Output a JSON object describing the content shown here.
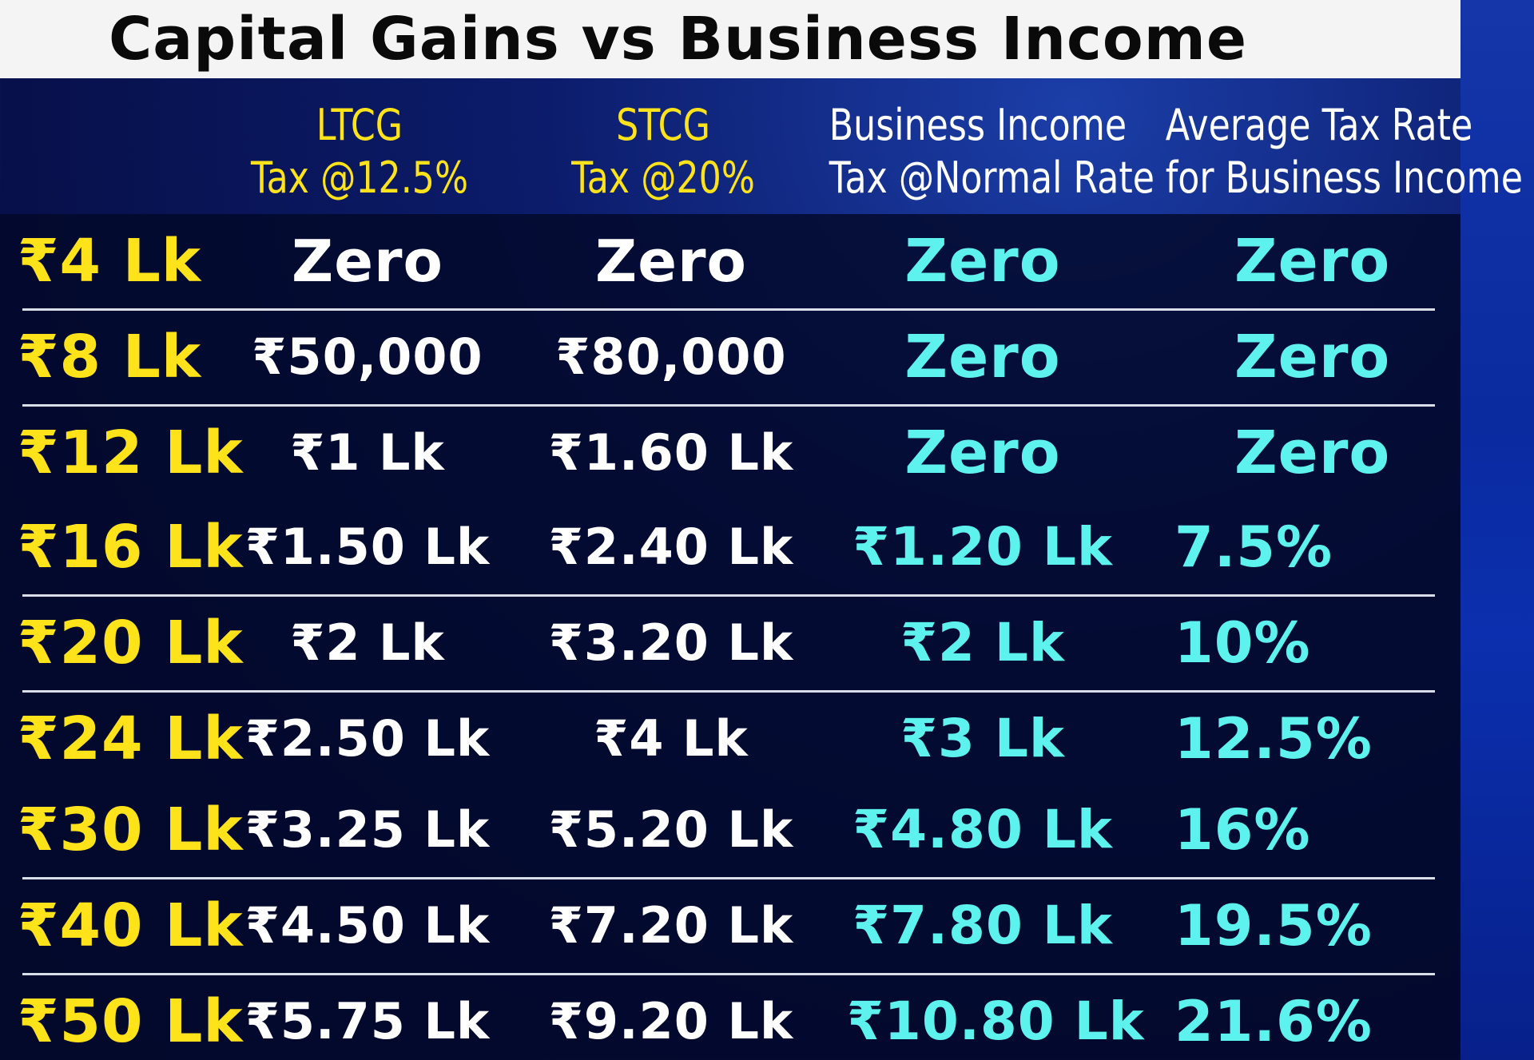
{
  "title": "Capital Gains vs Business Income",
  "columns": {
    "ltcg": [
      "LTCG",
      "Tax @12.5%"
    ],
    "stcg": [
      "STCG",
      "Tax @20%"
    ],
    "business_income": [
      "Business Income",
      "Tax @Normal Rate"
    ],
    "average_rate": [
      "Average Tax Rate",
      "for Business Income"
    ]
  },
  "rows": [
    {
      "income": "₹4 Lk",
      "ltcg": "Zero",
      "stcg": "Zero",
      "business": "Zero",
      "avg": "Zero"
    },
    {
      "income": "₹8 Lk",
      "ltcg": "₹50,000",
      "stcg": "₹80,000",
      "business": "Zero",
      "avg": "Zero"
    },
    {
      "income": "₹12 Lk",
      "ltcg": "₹1 Lk",
      "stcg": "₹1.60 Lk",
      "business": "Zero",
      "avg": "Zero"
    },
    {
      "income": "₹16 Lk",
      "ltcg": "₹1.50 Lk",
      "stcg": "₹2.40 Lk",
      "business": "₹1.20 Lk",
      "avg": "7.5%"
    },
    {
      "income": "₹20 Lk",
      "ltcg": "₹2 Lk",
      "stcg": "₹3.20 Lk",
      "business": "₹2 Lk",
      "avg": "10%"
    },
    {
      "income": "₹24 Lk",
      "ltcg": "₹2.50 Lk",
      "stcg": "₹4 Lk",
      "business": "₹3 Lk",
      "avg": "12.5%"
    },
    {
      "income": "₹30 Lk",
      "ltcg": "₹3.25 Lk",
      "stcg": "₹5.20 Lk",
      "business": "₹4.80 Lk",
      "avg": "16%"
    },
    {
      "income": "₹40 Lk",
      "ltcg": "₹4.50 Lk",
      "stcg": "₹7.20 Lk",
      "business": "₹7.80 Lk",
      "avg": "19.5%"
    },
    {
      "income": "₹50 Lk",
      "ltcg": "₹5.75 Lk",
      "stcg": "₹9.20 Lk",
      "business": "₹10.80 Lk",
      "avg": "21.6%"
    }
  ],
  "colors": {
    "income": "#ffe31a",
    "capital_gains_values": "#ffffff",
    "business_values": "#5ef2ee",
    "background": "#07104a"
  }
}
